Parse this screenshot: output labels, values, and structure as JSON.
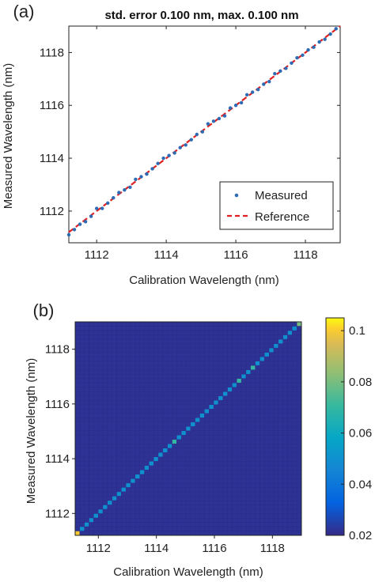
{
  "chart_data": [
    {
      "panel_label": "(a)",
      "type": "scatter",
      "title": "std. error 0.100 nm, max. 0.100 nm",
      "xlabel": "Calibration Wavelength (nm)",
      "ylabel": "Measured Wavelength (nm)",
      "xlim": [
        1111.2,
        1119.0
      ],
      "ylim": [
        1110.8,
        1119.0
      ],
      "xticks": [
        1112,
        1114,
        1116,
        1118
      ],
      "yticks": [
        1112,
        1114,
        1116,
        1118
      ],
      "grid": false,
      "legend_position": "bottom-right",
      "series": [
        {
          "name": "Measured",
          "style": "points",
          "color": "#2e6bb5",
          "x": [
            1111.2,
            1111.36,
            1111.52,
            1111.68,
            1111.84,
            1112.0,
            1112.16,
            1112.32,
            1112.48,
            1112.64,
            1112.8,
            1112.96,
            1113.12,
            1113.28,
            1113.44,
            1113.6,
            1113.76,
            1113.92,
            1114.08,
            1114.24,
            1114.4,
            1114.56,
            1114.72,
            1114.88,
            1115.04,
            1115.2,
            1115.36,
            1115.52,
            1115.68,
            1115.84,
            1116.0,
            1116.16,
            1116.32,
            1116.48,
            1116.64,
            1116.8,
            1116.96,
            1117.12,
            1117.28,
            1117.44,
            1117.6,
            1117.76,
            1117.92,
            1118.08,
            1118.24,
            1118.4,
            1118.56,
            1118.72,
            1118.88
          ],
          "y": [
            1111.1,
            1111.3,
            1111.5,
            1111.6,
            1111.8,
            1112.1,
            1112.1,
            1112.3,
            1112.5,
            1112.7,
            1112.8,
            1112.9,
            1113.2,
            1113.3,
            1113.4,
            1113.6,
            1113.8,
            1114.0,
            1114.1,
            1114.2,
            1114.4,
            1114.5,
            1114.7,
            1114.9,
            1115.0,
            1115.3,
            1115.4,
            1115.5,
            1115.6,
            1115.9,
            1116.0,
            1116.1,
            1116.4,
            1116.5,
            1116.6,
            1116.8,
            1116.9,
            1117.2,
            1117.3,
            1117.4,
            1117.6,
            1117.8,
            1117.9,
            1118.1,
            1118.2,
            1118.4,
            1118.5,
            1118.7,
            1118.9
          ]
        },
        {
          "name": "Reference",
          "style": "dashed-line",
          "color": "#e02020",
          "x": [
            1111.2,
            1119.0
          ],
          "y": [
            1111.2,
            1119.0
          ]
        }
      ]
    },
    {
      "panel_label": "(b)",
      "type": "heatmap",
      "xlabel": "Calibration Wavelength (nm)",
      "ylabel": "Measured Wavelength (nm)",
      "xlim": [
        1111.2,
        1119.0
      ],
      "ylim": [
        1111.2,
        1119.0
      ],
      "xticks": [
        1112,
        1114,
        1116,
        1118
      ],
      "yticks": [
        1112,
        1114,
        1116,
        1118
      ],
      "grid_cells": 49,
      "off_diagonal_value": 0.022,
      "diagonal_values": [
        0.1,
        0.05,
        0.05,
        0.05,
        0.05,
        0.05,
        0.05,
        0.05,
        0.05,
        0.05,
        0.05,
        0.05,
        0.05,
        0.05,
        0.05,
        0.05,
        0.05,
        0.05,
        0.05,
        0.05,
        0.05,
        0.07,
        0.05,
        0.05,
        0.05,
        0.05,
        0.05,
        0.05,
        0.05,
        0.05,
        0.05,
        0.05,
        0.05,
        0.05,
        0.05,
        0.07,
        0.05,
        0.05,
        0.07,
        0.05,
        0.05,
        0.05,
        0.05,
        0.05,
        0.05,
        0.05,
        0.05,
        0.05,
        0.08
      ],
      "colorbar": {
        "min": 0.02,
        "max": 0.105,
        "ticks": [
          0.1,
          0.08,
          0.06,
          0.04,
          0.02
        ],
        "tick_labels": [
          "0.1",
          "0.08",
          "0.06",
          "0.04",
          "0.02"
        ],
        "colormap": "parula"
      }
    }
  ]
}
